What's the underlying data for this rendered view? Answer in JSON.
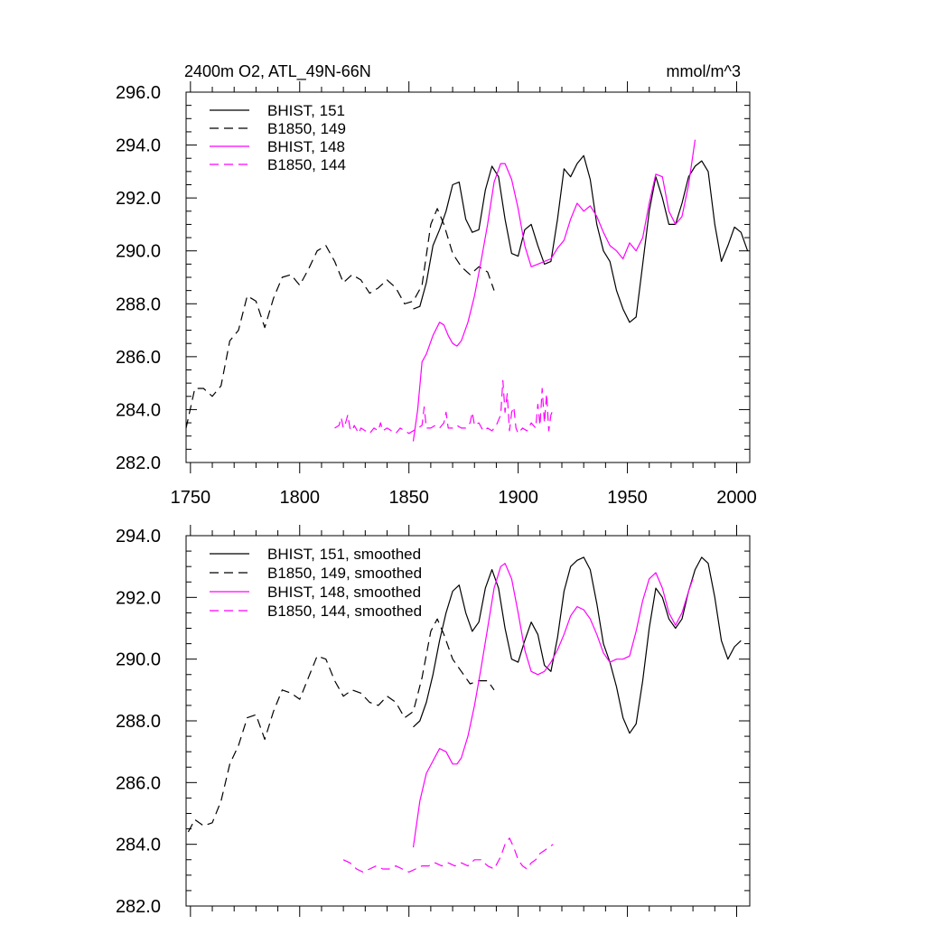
{
  "chart_data": [
    {
      "type": "line",
      "title": "2400m O2, ATL_49N-66N",
      "units": "mmol/m^3",
      "xlim": [
        1748,
        2006
      ],
      "ylim": [
        282,
        296
      ],
      "xticks": [
        1750,
        1800,
        1850,
        1900,
        1950,
        2000
      ],
      "xtick_labels": [
        "1750",
        "1800",
        "1850",
        "1900",
        "1950",
        "2000"
      ],
      "yticks": [
        282,
        284,
        286,
        288,
        290,
        292,
        294,
        296
      ],
      "ytick_labels": [
        "282.0",
        "284.0",
        "286.0",
        "288.0",
        "290.0",
        "292.0",
        "294.0",
        "296.0"
      ],
      "series": [
        {
          "name": "BHIST, 151",
          "color": "#000000",
          "dash": "solid",
          "x": [
            1852,
            1855,
            1858,
            1861,
            1864,
            1867,
            1870,
            1873,
            1876,
            1879,
            1882,
            1885,
            1888,
            1891,
            1894,
            1897,
            1900,
            1903,
            1906,
            1909,
            1912,
            1915,
            1918,
            1921,
            1924,
            1927,
            1930,
            1933,
            1936,
            1939,
            1942,
            1945,
            1948,
            1951,
            1954,
            1957,
            1960,
            1963,
            1966,
            1969,
            1972,
            1975,
            1978,
            1981,
            1984,
            1987,
            1990,
            1993,
            1996,
            1999,
            2002,
            2005
          ],
          "y": [
            287.8,
            287.9,
            288.8,
            290.2,
            290.8,
            291.5,
            292.5,
            292.6,
            291.2,
            290.7,
            290.8,
            292.3,
            293.2,
            292.8,
            291.2,
            289.9,
            289.8,
            290.8,
            291.0,
            290.2,
            289.5,
            289.6,
            291.2,
            293.1,
            292.8,
            293.3,
            293.6,
            292.7,
            291.0,
            290.0,
            289.6,
            288.5,
            287.8,
            287.3,
            287.5,
            289.5,
            291.5,
            292.8,
            292.0,
            291.0,
            291.0,
            291.8,
            292.8,
            293.2,
            293.4,
            293.0,
            291.0,
            289.6,
            290.2,
            290.9,
            290.7,
            290.0
          ]
        },
        {
          "name": "B1850, 149",
          "color": "#000000",
          "dash": "dashed",
          "x": [
            1748,
            1752,
            1756,
            1760,
            1764,
            1768,
            1772,
            1776,
            1780,
            1784,
            1788,
            1792,
            1796,
            1800,
            1804,
            1808,
            1812,
            1816,
            1820,
            1824,
            1828,
            1832,
            1836,
            1840,
            1844,
            1848,
            1852,
            1856,
            1860,
            1863,
            1866,
            1870,
            1874,
            1878,
            1882,
            1886,
            1889
          ],
          "y": [
            283.3,
            284.8,
            284.8,
            284.5,
            284.9,
            286.6,
            287.0,
            288.3,
            288.1,
            287.1,
            288.2,
            289.0,
            289.1,
            288.7,
            289.3,
            290.0,
            290.2,
            289.6,
            288.8,
            289.1,
            288.9,
            288.4,
            288.6,
            288.9,
            288.6,
            288.0,
            288.1,
            288.7,
            291.0,
            291.6,
            291.0,
            289.9,
            289.4,
            289.1,
            289.4,
            289.2,
            288.5
          ]
        },
        {
          "name": "BHIST, 148",
          "color": "#ff00ff",
          "dash": "solid",
          "x": [
            1852,
            1854,
            1856,
            1858,
            1861,
            1864,
            1866,
            1868,
            1870,
            1872,
            1874,
            1877,
            1880,
            1883,
            1886,
            1889,
            1892,
            1894,
            1897,
            1900,
            1903,
            1906,
            1909,
            1912,
            1915,
            1918,
            1921,
            1924,
            1927,
            1930,
            1933,
            1936,
            1939,
            1942,
            1945,
            1948,
            1951,
            1954,
            1957,
            1960,
            1963,
            1966,
            1969,
            1972,
            1975,
            1978,
            1981
          ],
          "y": [
            282.8,
            284.0,
            285.8,
            286.1,
            286.8,
            287.3,
            287.2,
            286.8,
            286.5,
            286.4,
            286.6,
            287.3,
            288.3,
            289.6,
            291.0,
            292.6,
            293.3,
            293.3,
            292.7,
            291.6,
            290.2,
            289.4,
            289.5,
            289.6,
            289.7,
            290.1,
            290.4,
            291.2,
            291.8,
            291.5,
            291.7,
            291.3,
            290.7,
            290.2,
            290.0,
            289.7,
            290.3,
            290.0,
            290.5,
            291.8,
            292.9,
            292.8,
            291.5,
            291.0,
            291.3,
            292.5,
            294.2
          ]
        },
        {
          "name": "B1850, 144",
          "color": "#ff00ff",
          "dash": "dashed",
          "x": [
            1816,
            1818,
            1819,
            1820,
            1821,
            1822,
            1823,
            1824,
            1825,
            1827,
            1828,
            1830,
            1832,
            1834,
            1836,
            1837,
            1838,
            1840,
            1842,
            1844,
            1846,
            1848,
            1850,
            1852,
            1854,
            1856,
            1857,
            1858,
            1860,
            1862,
            1864,
            1866,
            1867,
            1868,
            1870,
            1872,
            1874,
            1876,
            1878,
            1879,
            1880,
            1882,
            1884,
            1886,
            1888,
            1890,
            1892,
            1893,
            1894,
            1895,
            1896,
            1897,
            1898,
            1899,
            1900,
            1902,
            1904,
            1906,
            1908,
            1909,
            1910,
            1911,
            1912,
            1913,
            1914,
            1915,
            1916
          ],
          "y": [
            283.3,
            283.4,
            283.7,
            283.3,
            283.5,
            283.8,
            283.3,
            283.2,
            283.4,
            283.1,
            283.3,
            283.2,
            283.1,
            283.3,
            283.2,
            283.5,
            283.2,
            283.3,
            283.2,
            283.1,
            283.3,
            283.2,
            283.1,
            283.2,
            283.3,
            283.4,
            284.1,
            283.3,
            283.3,
            283.4,
            283.3,
            283.5,
            283.9,
            283.3,
            283.3,
            283.4,
            283.3,
            283.3,
            283.5,
            283.9,
            283.4,
            283.5,
            283.2,
            283.3,
            283.2,
            283.4,
            283.8,
            285.1,
            283.9,
            284.6,
            283.2,
            283.9,
            284.1,
            283.3,
            283.1,
            283.3,
            283.2,
            283.5,
            283.3,
            284.2,
            283.4,
            284.8,
            283.5,
            284.6,
            283.2,
            283.8,
            284.0
          ]
        }
      ]
    },
    {
      "type": "line",
      "xlim": [
        1748,
        2006
      ],
      "ylim": [
        282,
        294
      ],
      "xticks": [
        1750,
        1800,
        1850,
        1900,
        1950,
        2000
      ],
      "yticks": [
        282,
        284,
        286,
        288,
        290,
        292,
        294
      ],
      "ytick_labels": [
        "282.0",
        "284.0",
        "286.0",
        "288.0",
        "290.0",
        "292.0",
        "294.0"
      ],
      "series": [
        {
          "name": "BHIST, 151, smoothed",
          "color": "#000000",
          "dash": "solid",
          "x": [
            1852,
            1855,
            1858,
            1861,
            1864,
            1867,
            1870,
            1873,
            1876,
            1879,
            1882,
            1885,
            1888,
            1891,
            1894,
            1897,
            1900,
            1903,
            1906,
            1909,
            1912,
            1915,
            1918,
            1921,
            1924,
            1927,
            1930,
            1933,
            1936,
            1939,
            1942,
            1945,
            1948,
            1951,
            1954,
            1957,
            1960,
            1963,
            1966,
            1969,
            1972,
            1975,
            1978,
            1981,
            1984,
            1987,
            1990,
            1993,
            1996,
            1999,
            2002
          ],
          "y": [
            287.8,
            288.0,
            288.6,
            289.5,
            290.6,
            291.5,
            292.2,
            292.4,
            291.5,
            290.9,
            291.2,
            292.3,
            292.9,
            292.3,
            291.0,
            290.0,
            289.9,
            290.6,
            291.2,
            290.8,
            289.8,
            289.6,
            290.7,
            292.2,
            293.0,
            293.2,
            293.3,
            292.9,
            291.8,
            290.5,
            289.9,
            289.1,
            288.1,
            287.6,
            287.9,
            289.3,
            291.0,
            292.3,
            292.0,
            291.3,
            291.0,
            291.3,
            292.2,
            292.9,
            293.3,
            293.1,
            292.0,
            290.6,
            290.0,
            290.4,
            290.6
          ]
        },
        {
          "name": "B1850, 149, smoothed",
          "color": "#000000",
          "dash": "dashed",
          "x": [
            1749,
            1752,
            1756,
            1760,
            1764,
            1768,
            1772,
            1776,
            1780,
            1784,
            1788,
            1792,
            1796,
            1800,
            1804,
            1808,
            1812,
            1816,
            1820,
            1824,
            1828,
            1832,
            1836,
            1840,
            1844,
            1848,
            1852,
            1856,
            1860,
            1863,
            1866,
            1870,
            1874,
            1878,
            1882,
            1886,
            1889
          ],
          "y": [
            284.4,
            284.8,
            284.6,
            284.7,
            285.4,
            286.6,
            287.2,
            288.1,
            288.2,
            287.4,
            288.3,
            289.0,
            288.9,
            288.7,
            289.4,
            290.1,
            290.0,
            289.3,
            288.8,
            289.0,
            288.9,
            288.6,
            288.5,
            288.8,
            288.6,
            288.1,
            288.3,
            289.4,
            290.9,
            291.3,
            290.8,
            290.0,
            289.6,
            289.2,
            289.3,
            289.3,
            289.0
          ]
        },
        {
          "name": "BHIST, 148, smoothed",
          "color": "#ff00ff",
          "dash": "solid",
          "x": [
            1852,
            1855,
            1858,
            1861,
            1864,
            1867,
            1870,
            1872,
            1874,
            1877,
            1880,
            1883,
            1886,
            1889,
            1892,
            1894,
            1897,
            1900,
            1903,
            1906,
            1909,
            1912,
            1915,
            1918,
            1921,
            1924,
            1927,
            1930,
            1933,
            1936,
            1939,
            1942,
            1945,
            1948,
            1951,
            1954,
            1957,
            1960,
            1963,
            1966,
            1969,
            1972,
            1975,
            1978,
            1980
          ],
          "y": [
            283.9,
            285.4,
            286.3,
            286.7,
            287.1,
            287.0,
            286.6,
            286.6,
            286.8,
            287.5,
            288.5,
            289.7,
            291.0,
            292.3,
            293.0,
            293.1,
            292.6,
            291.5,
            290.3,
            289.6,
            289.5,
            289.6,
            289.9,
            290.3,
            290.8,
            291.4,
            291.7,
            291.6,
            291.3,
            290.8,
            290.2,
            289.9,
            290.0,
            290.0,
            290.1,
            290.9,
            291.9,
            292.6,
            292.8,
            292.3,
            291.5,
            291.1,
            291.5,
            292.2,
            292.6
          ]
        },
        {
          "name": "B1850, 144, smoothed",
          "color": "#ff00ff",
          "dash": "dashed",
          "x": [
            1820,
            1823,
            1826,
            1829,
            1832,
            1835,
            1838,
            1841,
            1844,
            1847,
            1850,
            1853,
            1856,
            1859,
            1862,
            1865,
            1868,
            1871,
            1874,
            1877,
            1880,
            1883,
            1886,
            1889,
            1892,
            1894,
            1896,
            1898,
            1900,
            1902,
            1904,
            1906,
            1908,
            1910,
            1912,
            1914,
            1916
          ],
          "y": [
            283.5,
            283.4,
            283.2,
            283.1,
            283.2,
            283.3,
            283.2,
            283.2,
            283.3,
            283.2,
            283.1,
            283.2,
            283.3,
            283.3,
            283.4,
            283.3,
            283.4,
            283.3,
            283.4,
            283.3,
            283.5,
            283.5,
            283.3,
            283.2,
            283.6,
            284.0,
            284.2,
            283.9,
            283.5,
            283.3,
            283.2,
            283.4,
            283.5,
            283.7,
            283.8,
            283.9,
            284.0
          ]
        }
      ]
    }
  ]
}
